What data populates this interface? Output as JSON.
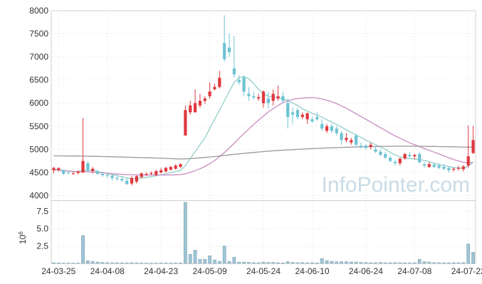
{
  "chart_data": {
    "type": "candlestick",
    "watermark": "InfoPointer.com",
    "x_tick_labels": [
      "24-03-25",
      "24-04-08",
      "24-04-23",
      "24-05-09",
      "24-05-24",
      "24-06-10",
      "24-06-24",
      "24-07-08",
      "24-07-22"
    ],
    "price_panel": {
      "y_ticks": [
        4000,
        4500,
        5000,
        5500,
        6000,
        6500,
        7000,
        7500,
        8000
      ],
      "ylim": [
        3900,
        8000
      ],
      "ohlc": [
        [
          4550,
          4620,
          4480,
          4600
        ],
        [
          4560,
          4600,
          4520,
          4600
        ],
        [
          4540,
          4560,
          4440,
          4470
        ],
        [
          4500,
          4520,
          4460,
          4490
        ],
        [
          4480,
          4520,
          4450,
          4480
        ],
        [
          4490,
          4550,
          4460,
          4520
        ],
        [
          4500,
          5680,
          4490,
          4750
        ],
        [
          4700,
          4750,
          4520,
          4550
        ],
        [
          4530,
          4620,
          4480,
          4580
        ],
        [
          4520,
          4560,
          4450,
          4470
        ],
        [
          4470,
          4520,
          4400,
          4440
        ],
        [
          4450,
          4480,
          4380,
          4430
        ],
        [
          4430,
          4460,
          4330,
          4380
        ],
        [
          4380,
          4420,
          4320,
          4360
        ],
        [
          4360,
          4400,
          4300,
          4330
        ],
        [
          4320,
          4380,
          4230,
          4250
        ],
        [
          4260,
          4420,
          4220,
          4380
        ],
        [
          4300,
          4440,
          4260,
          4420
        ],
        [
          4400,
          4500,
          4380,
          4480
        ],
        [
          4460,
          4500,
          4420,
          4470
        ],
        [
          4470,
          4520,
          4440,
          4490
        ],
        [
          4450,
          4560,
          4420,
          4530
        ],
        [
          4500,
          4600,
          4480,
          4550
        ],
        [
          4520,
          4620,
          4500,
          4600
        ],
        [
          4560,
          4640,
          4540,
          4620
        ],
        [
          4580,
          4680,
          4560,
          4650
        ],
        [
          4620,
          4700,
          4600,
          4680
        ],
        [
          5300,
          5950,
          5300,
          5850
        ],
        [
          5800,
          6050,
          5750,
          5950
        ],
        [
          5800,
          6300,
          5800,
          6000
        ],
        [
          5950,
          6200,
          5900,
          6050
        ],
        [
          6050,
          6150,
          5980,
          6100
        ],
        [
          6150,
          6450,
          6100,
          6250
        ],
        [
          6300,
          6420,
          6280,
          6350
        ],
        [
          6350,
          6700,
          6320,
          6550
        ],
        [
          7300,
          7900,
          6900,
          6950
        ],
        [
          7200,
          7500,
          7000,
          7100
        ],
        [
          6750,
          7450,
          6550,
          6620
        ],
        [
          6500,
          6600,
          6400,
          6450
        ],
        [
          6550,
          6600,
          6150,
          6250
        ],
        [
          6200,
          6350,
          6050,
          6150
        ],
        [
          6150,
          6250,
          6080,
          6120
        ],
        [
          6100,
          6200,
          6050,
          6130
        ],
        [
          6000,
          6280,
          5900,
          6250
        ],
        [
          6100,
          6250,
          5880,
          6000
        ],
        [
          6050,
          6300,
          5950,
          6200
        ],
        [
          6100,
          6380,
          6050,
          6150
        ],
        [
          6150,
          6250,
          6000,
          6050
        ],
        [
          6000,
          6100,
          5450,
          5700
        ],
        [
          5800,
          5900,
          5550,
          5750
        ],
        [
          5850,
          5900,
          5650,
          5700
        ],
        [
          5700,
          5800,
          5650,
          5750
        ],
        [
          5650,
          5800,
          5550,
          5780
        ],
        [
          5650,
          5700,
          5580,
          5600
        ],
        [
          5700,
          5800,
          5620,
          5650
        ],
        [
          5550,
          5650,
          5400,
          5450
        ],
        [
          5400,
          5550,
          5350,
          5500
        ],
        [
          5500,
          5550,
          5350,
          5400
        ],
        [
          5450,
          5500,
          5300,
          5350
        ],
        [
          5350,
          5400,
          5100,
          5200
        ],
        [
          5200,
          5350,
          5150,
          5250
        ],
        [
          5150,
          5250,
          5100,
          5200
        ],
        [
          5300,
          5330,
          5050,
          5100
        ],
        [
          5080,
          5150,
          5020,
          5050
        ],
        [
          5080,
          5120,
          5000,
          5030
        ],
        [
          5050,
          5150,
          5000,
          5100
        ],
        [
          5000,
          5050,
          4920,
          4950
        ],
        [
          4950,
          5000,
          4850,
          4880
        ],
        [
          4900,
          4950,
          4800,
          4820
        ],
        [
          4820,
          4860,
          4720,
          4750
        ],
        [
          4730,
          4780,
          4650,
          4700
        ],
        [
          4700,
          4820,
          4650,
          4800
        ],
        [
          4800,
          4920,
          4780,
          4900
        ],
        [
          4880,
          4940,
          4820,
          4850
        ],
        [
          4850,
          4900,
          4780,
          4880
        ],
        [
          4900,
          4950,
          4700,
          4720
        ],
        [
          4680,
          4720,
          4600,
          4650
        ],
        [
          4620,
          4720,
          4600,
          4680
        ],
        [
          4670,
          4700,
          4600,
          4620
        ],
        [
          4650,
          4700,
          4570,
          4600
        ],
        [
          4620,
          4680,
          4550,
          4580
        ],
        [
          4600,
          4620,
          4500,
          4550
        ],
        [
          4560,
          4600,
          4520,
          4580
        ],
        [
          4580,
          4640,
          4540,
          4600
        ],
        [
          4570,
          4660,
          4520,
          4630
        ],
        [
          4650,
          5520,
          4600,
          4850
        ],
        [
          4920,
          5510,
          4900,
          5200
        ]
      ],
      "lines": [
        {
          "color": "#8fcfc8",
          "values": [
            4560,
            4565,
            4545,
            4535,
            4525,
            4520,
            4545,
            4545,
            4545,
            4520,
            4495,
            4475,
            4455,
            4430,
            4410,
            4380,
            4370,
            4370,
            4380,
            4395,
            4410,
            4430,
            4450,
            4470,
            4500,
            4520,
            4545,
            4650,
            4800,
            4950,
            5100,
            5250,
            5450,
            5650,
            5850,
            6050,
            6250,
            6450,
            6550,
            6570,
            6530,
            6420,
            6300,
            6200,
            6150,
            6130,
            6120,
            6100,
            6050,
            6000,
            5950,
            5880,
            5830,
            5780,
            5740,
            5700,
            5640,
            5590,
            5540,
            5480,
            5420,
            5370,
            5310,
            5260,
            5200,
            5150,
            5100,
            5050,
            5000,
            4940,
            4880,
            4840,
            4810,
            4800,
            4790,
            4780,
            4760,
            4730,
            4700,
            4670,
            4650,
            4630,
            4610,
            4600,
            4590,
            4640,
            4720
          ]
        },
        {
          "color": "#c78cc0",
          "values": [
            4555,
            4550,
            4540,
            4530,
            4520,
            4515,
            4520,
            4515,
            4510,
            4500,
            4495,
            4485,
            4475,
            4465,
            4460,
            4455,
            4450,
            4448,
            4445,
            4445,
            4445,
            4445,
            4445,
            4445,
            4448,
            4450,
            4455,
            4470,
            4500,
            4540,
            4580,
            4630,
            4690,
            4760,
            4840,
            4930,
            5030,
            5130,
            5240,
            5340,
            5440,
            5540,
            5630,
            5720,
            5810,
            5880,
            5950,
            6010,
            6050,
            6080,
            6100,
            6110,
            6115,
            6120,
            6110,
            6090,
            6060,
            6030,
            5990,
            5940,
            5890,
            5830,
            5770,
            5710,
            5650,
            5590,
            5530,
            5470,
            5410,
            5350,
            5290,
            5240,
            5190,
            5140,
            5100,
            5060,
            5020,
            4980,
            4940,
            4900,
            4860,
            4820,
            4780,
            4750,
            4720,
            4710,
            4720
          ]
        },
        {
          "color": "#999999",
          "values": [
            4860,
            4859,
            4858,
            4857,
            4856,
            4855,
            4853,
            4851,
            4849,
            4847,
            4845,
            4843,
            4840,
            4837,
            4834,
            4831,
            4828,
            4825,
            4822,
            4819,
            4816,
            4812,
            4808,
            4804,
            4800,
            4796,
            4792,
            4795,
            4800,
            4808,
            4816,
            4825,
            4835,
            4845,
            4856,
            4868,
            4880,
            4892,
            4903,
            4914,
            4924,
            4934,
            4943,
            4952,
            4960,
            4968,
            4975,
            4982,
            4988,
            4994,
            5000,
            5006,
            5011,
            5016,
            5021,
            5026,
            5030,
            5034,
            5038,
            5042,
            5045,
            5048,
            5051,
            5054,
            5057,
            5060,
            5062,
            5064,
            5066,
            5067,
            5068,
            5069,
            5069,
            5069,
            5068,
            5067,
            5066,
            5064,
            5062,
            5060,
            5058,
            5056,
            5054,
            5052,
            5050,
            5049,
            5048
          ]
        }
      ]
    },
    "volume_panel": {
      "y_unit_label": "10^6",
      "y_ticks": [
        2.5,
        5.0,
        7.5
      ],
      "ylim": [
        0,
        9
      ],
      "values": [
        0.1,
        0.08,
        0.05,
        0.05,
        0.05,
        0.05,
        4.0,
        0.4,
        0.3,
        0.2,
        0.15,
        0.12,
        0.1,
        0.1,
        0.08,
        0.08,
        0.1,
        0.08,
        0.06,
        0.05,
        0.05,
        0.05,
        0.06,
        0.06,
        0.05,
        0.06,
        0.07,
        8.8,
        1.3,
        1.9,
        0.6,
        0.6,
        1.1,
        0.5,
        0.3,
        2.5,
        0.3,
        0.9,
        0.2,
        0.2,
        0.15,
        0.1,
        0.1,
        0.2,
        0.15,
        0.15,
        0.1,
        0.08,
        0.25,
        0.15,
        0.1,
        0.12,
        0.1,
        0.1,
        0.08,
        0.7,
        0.4,
        0.3,
        0.25,
        0.25,
        0.25,
        0.2,
        0.2,
        0.15,
        0.12,
        0.1,
        0.1,
        0.15,
        0.1,
        0.1,
        0.12,
        0.1,
        0.08,
        0.08,
        0.1,
        0.6,
        0.25,
        0.2,
        0.12,
        0.1,
        0.1,
        0.1,
        0.1,
        0.1,
        0.12,
        2.8,
        1.6
      ]
    },
    "colors": {
      "up": "#e0393e",
      "down": "#6ec3d2",
      "volume": "#9fc4d4",
      "volume_stroke": "#7fa9ba",
      "grid": "#e2e2e2",
      "axis": "#cfcfcf"
    },
    "legend": "none",
    "grid": true
  }
}
